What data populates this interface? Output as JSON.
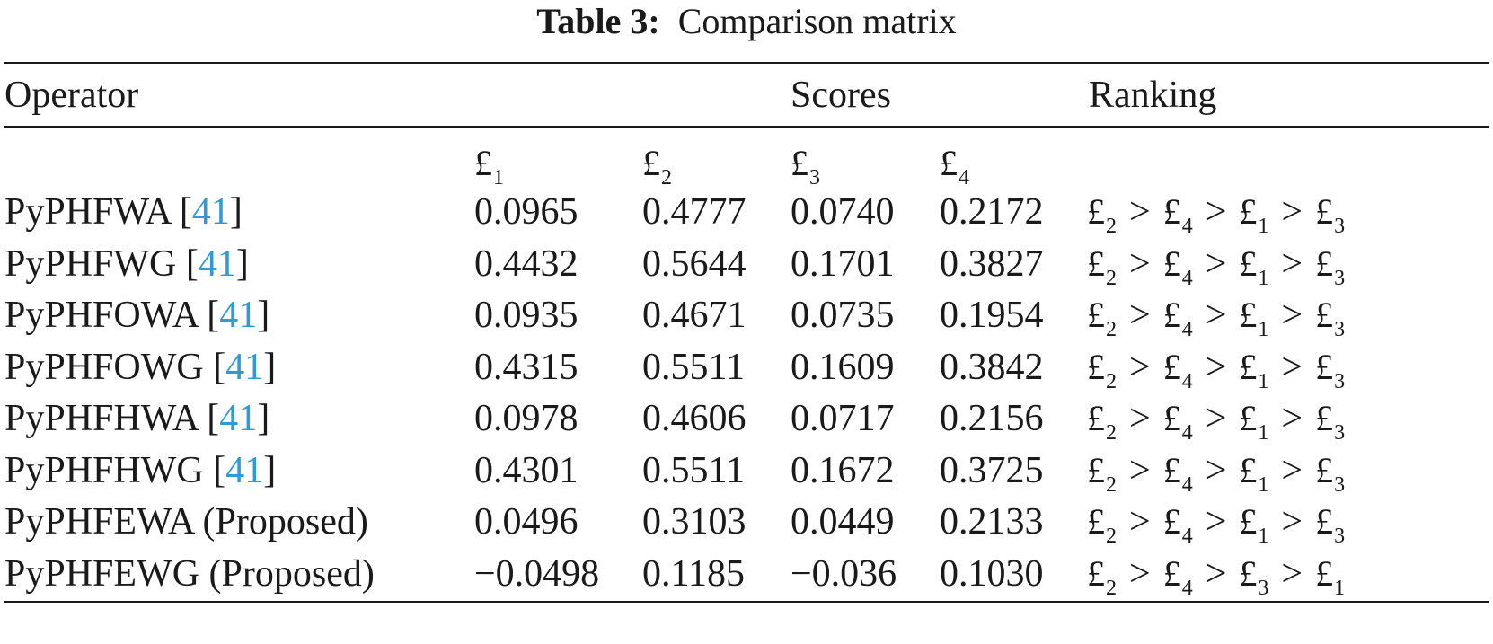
{
  "caption": {
    "label": "Table 3:",
    "title": "Comparison matrix"
  },
  "header": {
    "operator": "Operator",
    "scores": "Scores",
    "ranking": "Ranking"
  },
  "symbol": "£",
  "alt_subs": [
    "1",
    "2",
    "3",
    "4"
  ],
  "colors": {
    "citation": "#2f9ad6",
    "text": "#1a1a1a"
  },
  "rows": [
    {
      "name": "PyPHFWA",
      "cite": "41",
      "scores": [
        "0.0965",
        "0.4777",
        "0.0740",
        "0.2172"
      ],
      "ranking": [
        "2",
        "4",
        "1",
        "3"
      ]
    },
    {
      "name": "PyPHFWG",
      "cite": "41",
      "scores": [
        "0.4432",
        "0.5644",
        "0.1701",
        "0.3827"
      ],
      "ranking": [
        "2",
        "4",
        "1",
        "3"
      ]
    },
    {
      "name": "PyPHFOWA",
      "cite": "41",
      "scores": [
        "0.0935",
        "0.4671",
        "0.0735",
        "0.1954"
      ],
      "ranking": [
        "2",
        "4",
        "1",
        "3"
      ]
    },
    {
      "name": "PyPHFOWG",
      "cite": "41",
      "scores": [
        "0.4315",
        "0.5511",
        "0.1609",
        "0.3842"
      ],
      "ranking": [
        "2",
        "4",
        "1",
        "3"
      ]
    },
    {
      "name": "PyPHFHWA",
      "cite": "41",
      "scores": [
        "0.0978",
        "0.4606",
        "0.0717",
        "0.2156"
      ],
      "ranking": [
        "2",
        "4",
        "1",
        "3"
      ]
    },
    {
      "name": "PyPHFHWG",
      "cite": "41",
      "scores": [
        "0.4301",
        "0.5511",
        "0.1672",
        "0.3725"
      ],
      "ranking": [
        "2",
        "4",
        "1",
        "3"
      ]
    },
    {
      "name": "PyPHFEWA (Proposed)",
      "cite": "",
      "scores": [
        "0.0496",
        "0.3103",
        "0.0449",
        "0.2133"
      ],
      "ranking": [
        "2",
        "4",
        "1",
        "3"
      ]
    },
    {
      "name": "PyPHFEWG (Proposed)",
      "cite": "",
      "scores": [
        "−0.0498",
        "0.1185",
        "−0.036",
        "0.1030"
      ],
      "ranking": [
        "2",
        "4",
        "3",
        "1"
      ]
    }
  ]
}
